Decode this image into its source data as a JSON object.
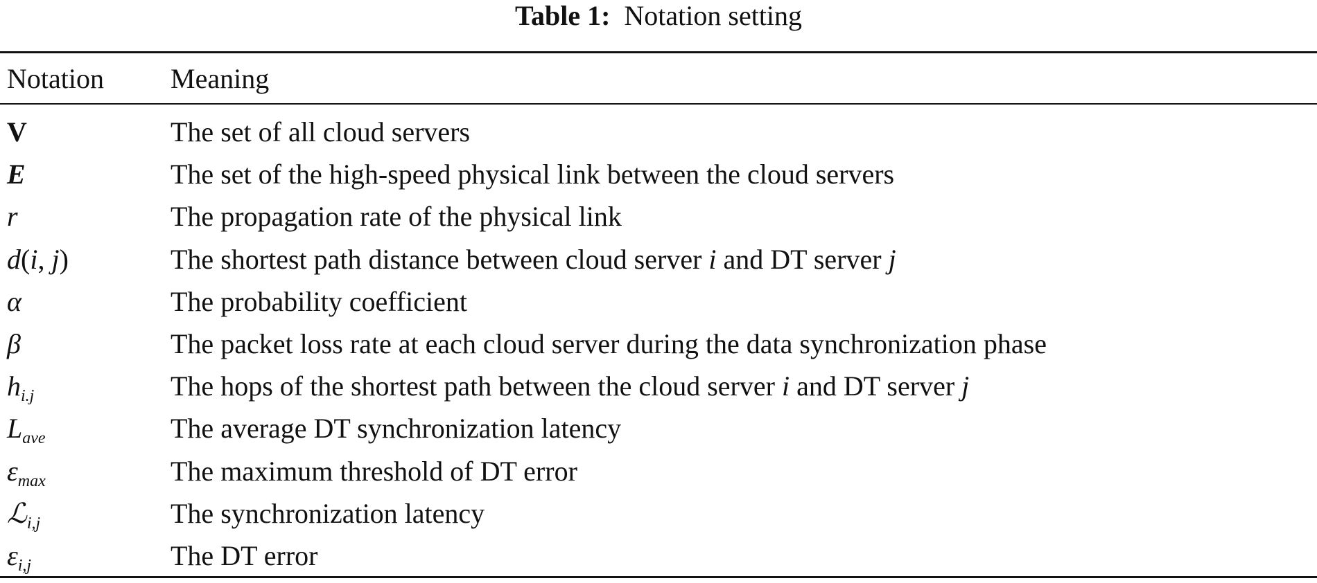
{
  "caption": {
    "label": "Table 1:",
    "text": "Notation setting"
  },
  "columns": [
    "Notation",
    "Meaning"
  ],
  "rows": [
    {
      "notation": [
        {
          "t": "V",
          "s": "bold"
        }
      ],
      "meaning": [
        {
          "t": "The set of all cloud servers"
        }
      ]
    },
    {
      "notation": [
        {
          "t": "E",
          "s": "bold-italic"
        }
      ],
      "meaning": [
        {
          "t": "The set of the high-speed physical link between the cloud servers"
        }
      ]
    },
    {
      "notation": [
        {
          "t": "r",
          "s": "italic"
        }
      ],
      "meaning": [
        {
          "t": "The propagation rate of the physical link"
        }
      ]
    },
    {
      "notation": [
        {
          "t": "d",
          "s": "italic"
        },
        {
          "t": "("
        },
        {
          "t": "i",
          "s": "italic"
        },
        {
          "t": ", "
        },
        {
          "t": "j",
          "s": "italic"
        },
        {
          "t": ")"
        }
      ],
      "meaning": [
        {
          "t": "The shortest path distance between cloud server "
        },
        {
          "t": "i",
          "s": "italic"
        },
        {
          "t": " and DT server "
        },
        {
          "t": "j",
          "s": "italic"
        }
      ]
    },
    {
      "notation": [
        {
          "t": "α",
          "s": "italic"
        }
      ],
      "meaning": [
        {
          "t": "The probability coefficient"
        }
      ]
    },
    {
      "notation": [
        {
          "t": "β",
          "s": "italic"
        }
      ],
      "meaning": [
        {
          "t": "The packet loss rate at each cloud server during the data synchronization phase"
        }
      ]
    },
    {
      "notation": [
        {
          "t": "h",
          "s": "italic"
        },
        {
          "t": "i.j",
          "s": "sub"
        }
      ],
      "meaning": [
        {
          "t": "The hops of the shortest path between the cloud server "
        },
        {
          "t": "i",
          "s": "italic"
        },
        {
          "t": " and DT server "
        },
        {
          "t": "j",
          "s": "italic"
        }
      ]
    },
    {
      "notation": [
        {
          "t": "L",
          "s": "italic"
        },
        {
          "t": "ave",
          "s": "sub"
        }
      ],
      "meaning": [
        {
          "t": "The average DT synchronization latency"
        }
      ]
    },
    {
      "notation": [
        {
          "t": "ε",
          "s": "italic"
        },
        {
          "t": "max",
          "s": "sub"
        }
      ],
      "meaning": [
        {
          "t": "The maximum threshold of DT error"
        }
      ]
    },
    {
      "notation": [
        {
          "t": "ℒ",
          "s": "italic"
        },
        {
          "t": "i,j",
          "s": "sub"
        }
      ],
      "meaning": [
        {
          "t": "The synchronization latency"
        }
      ]
    },
    {
      "notation": [
        {
          "t": "ε",
          "s": "italic"
        },
        {
          "t": "i,j",
          "s": "sub"
        }
      ],
      "meaning": [
        {
          "t": "The DT error"
        }
      ]
    }
  ]
}
